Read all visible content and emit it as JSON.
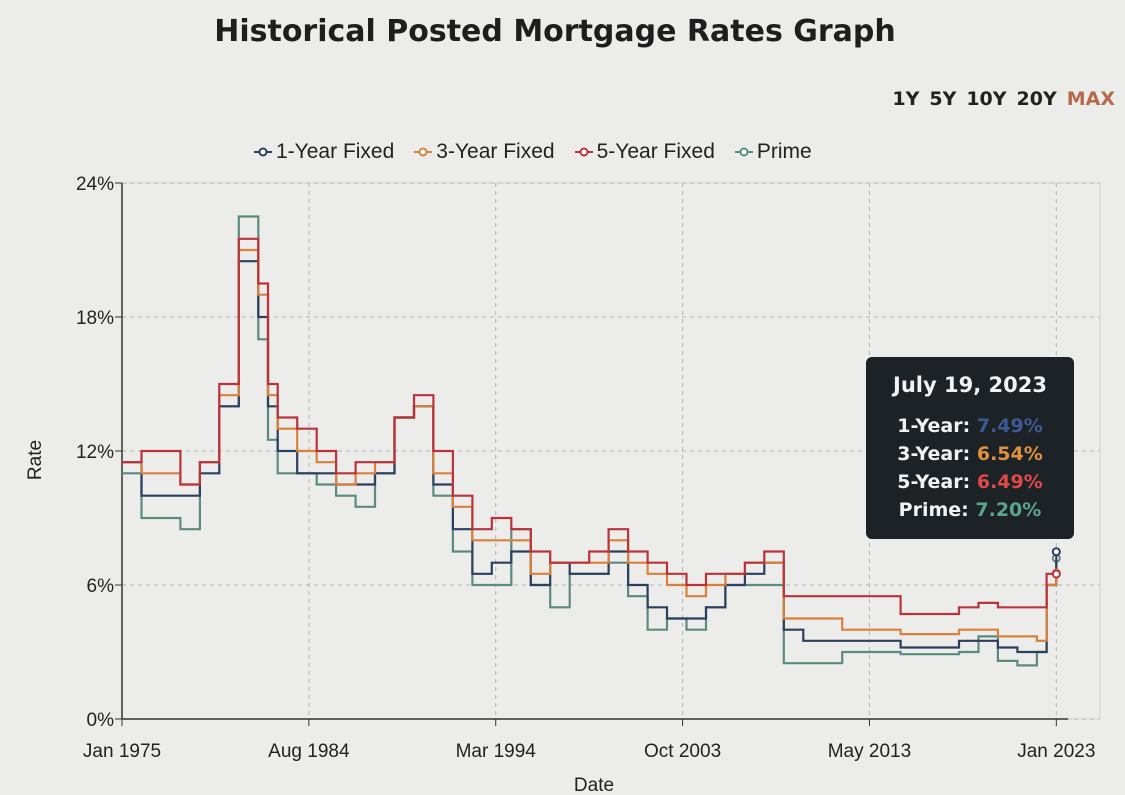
{
  "header": {
    "title": "Historical Posted Mortgage Rates Graph"
  },
  "range_buttons": [
    {
      "label": "1Y",
      "active": false
    },
    {
      "label": "5Y",
      "active": false
    },
    {
      "label": "10Y",
      "active": false
    },
    {
      "label": "20Y",
      "active": false
    },
    {
      "label": "MAX",
      "active": true
    }
  ],
  "tooltip": {
    "date": "July 19, 2023",
    "rows": [
      {
        "label": "1-Year:",
        "value": "7.49%",
        "color": "#3d5a94"
      },
      {
        "label": "3-Year:",
        "value": "6.54%",
        "color": "#e0913e"
      },
      {
        "label": "5-Year:",
        "value": "6.49%",
        "color": "#e0484a"
      },
      {
        "label": "Prime:",
        "value": "7.20%",
        "color": "#5aa68b"
      }
    ]
  },
  "chart_data": {
    "type": "line",
    "title": "Historical Posted Mortgage Rates Graph",
    "xlabel": "Date",
    "ylabel": "Rate",
    "ylim": [
      0,
      24
    ],
    "yticks": [
      "0%",
      "6%",
      "12%",
      "18%",
      "24%"
    ],
    "xticks": [
      "Jan 1975",
      "Aug 1984",
      "Mar 1994",
      "Oct 2003",
      "May 2013",
      "Jan 2023"
    ],
    "grid": true,
    "legend_position": "top",
    "series": [
      {
        "name": "1-Year Fixed",
        "color": "#2d3e5e",
        "x": [
          1975,
          1976,
          1978,
          1979,
          1980,
          1981,
          1982,
          1982.5,
          1983,
          1984,
          1985,
          1986,
          1987,
          1988,
          1989,
          1990,
          1991,
          1992,
          1993,
          1994,
          1995,
          1996,
          1997,
          1998,
          1999,
          2000,
          2001,
          2002,
          2003,
          2004,
          2005,
          2006,
          2007,
          2008,
          2009,
          2010,
          2012,
          2015,
          2017,
          2018,
          2019,
          2020,
          2021,
          2022,
          2022.5,
          2023
        ],
        "values": [
          11.5,
          10,
          10,
          11,
          14,
          20.5,
          18,
          14,
          12,
          11,
          11,
          10.5,
          10.5,
          11,
          13.5,
          14,
          10.5,
          8.5,
          6.5,
          7,
          7.5,
          6,
          7,
          6.5,
          6.5,
          7.5,
          6,
          5,
          4.5,
          4.5,
          5,
          6,
          6.5,
          7,
          4,
          3.5,
          3.5,
          3.2,
          3.2,
          3.5,
          3.5,
          3.2,
          3,
          3,
          6,
          7.49
        ]
      },
      {
        "name": "3-Year Fixed",
        "color": "#d9803c",
        "x": [
          1975,
          1976,
          1978,
          1979,
          1980,
          1981,
          1982,
          1982.5,
          1983,
          1984,
          1985,
          1986,
          1987,
          1988,
          1989,
          1990,
          1991,
          1992,
          1993,
          1994,
          1995,
          1996,
          1997,
          1998,
          1999,
          2000,
          2001,
          2002,
          2003,
          2004,
          2005,
          2006,
          2007,
          2008,
          2009,
          2010,
          2012,
          2015,
          2017,
          2018,
          2019,
          2020,
          2021,
          2022,
          2022.5,
          2023
        ],
        "values": [
          11.5,
          11,
          10.5,
          11.5,
          14.5,
          21,
          19,
          14.5,
          13,
          12,
          11.5,
          10.5,
          11,
          11.5,
          13.5,
          14,
          11,
          9.5,
          8,
          8,
          8,
          6.5,
          7,
          7,
          7,
          8,
          7,
          6.5,
          6,
          5.5,
          6,
          6.5,
          7,
          7,
          4.5,
          4.5,
          4,
          3.8,
          3.8,
          4,
          4,
          3.7,
          3.7,
          3.5,
          6,
          6.54
        ]
      },
      {
        "name": "5-Year Fixed",
        "color": "#b8343a",
        "x": [
          1975,
          1976,
          1978,
          1979,
          1980,
          1981,
          1982,
          1982.5,
          1983,
          1984,
          1985,
          1986,
          1987,
          1988,
          1989,
          1990,
          1991,
          1992,
          1993,
          1994,
          1995,
          1996,
          1997,
          1998,
          1999,
          2000,
          2001,
          2002,
          2003,
          2004,
          2005,
          2006,
          2007,
          2008,
          2009,
          2010,
          2012,
          2015,
          2017,
          2018,
          2019,
          2020,
          2021,
          2022,
          2022.5,
          2023
        ],
        "values": [
          11.5,
          12,
          10.5,
          11.5,
          15,
          21.5,
          19.5,
          15,
          13.5,
          13,
          12,
          11,
          11.5,
          11.5,
          13.5,
          14.5,
          12,
          10,
          8.5,
          9,
          8.5,
          7.5,
          7,
          7,
          7.5,
          8.5,
          7.5,
          7,
          6.5,
          6,
          6.5,
          6.5,
          7,
          7.5,
          5.5,
          5.5,
          5.5,
          4.7,
          4.7,
          5,
          5.2,
          5,
          5,
          5,
          6.5,
          6.49
        ]
      },
      {
        "name": "Prime",
        "color": "#5b8a80",
        "x": [
          1975,
          1976,
          1978,
          1979,
          1980,
          1981,
          1982,
          1982.5,
          1983,
          1984,
          1985,
          1986,
          1987,
          1988,
          1989,
          1990,
          1991,
          1992,
          1993,
          1994,
          1995,
          1996,
          1997,
          1998,
          1999,
          2000,
          2001,
          2002,
          2003,
          2004,
          2005,
          2006,
          2007,
          2008,
          2009,
          2010,
          2012,
          2015,
          2017,
          2018,
          2019,
          2020,
          2021,
          2022,
          2022.5,
          2023
        ],
        "values": [
          11,
          9,
          8.5,
          11.5,
          14,
          22.5,
          17,
          12.5,
          11,
          11,
          10.5,
          10,
          9.5,
          11,
          13.5,
          14,
          10,
          7.5,
          6,
          6,
          8.5,
          6,
          5,
          6.5,
          6.5,
          7,
          5.5,
          4,
          4.5,
          4,
          5,
          6,
          6,
          6,
          2.5,
          2.5,
          3,
          2.9,
          2.9,
          3,
          3.7,
          2.6,
          2.4,
          3,
          6,
          7.2
        ]
      }
    ]
  }
}
